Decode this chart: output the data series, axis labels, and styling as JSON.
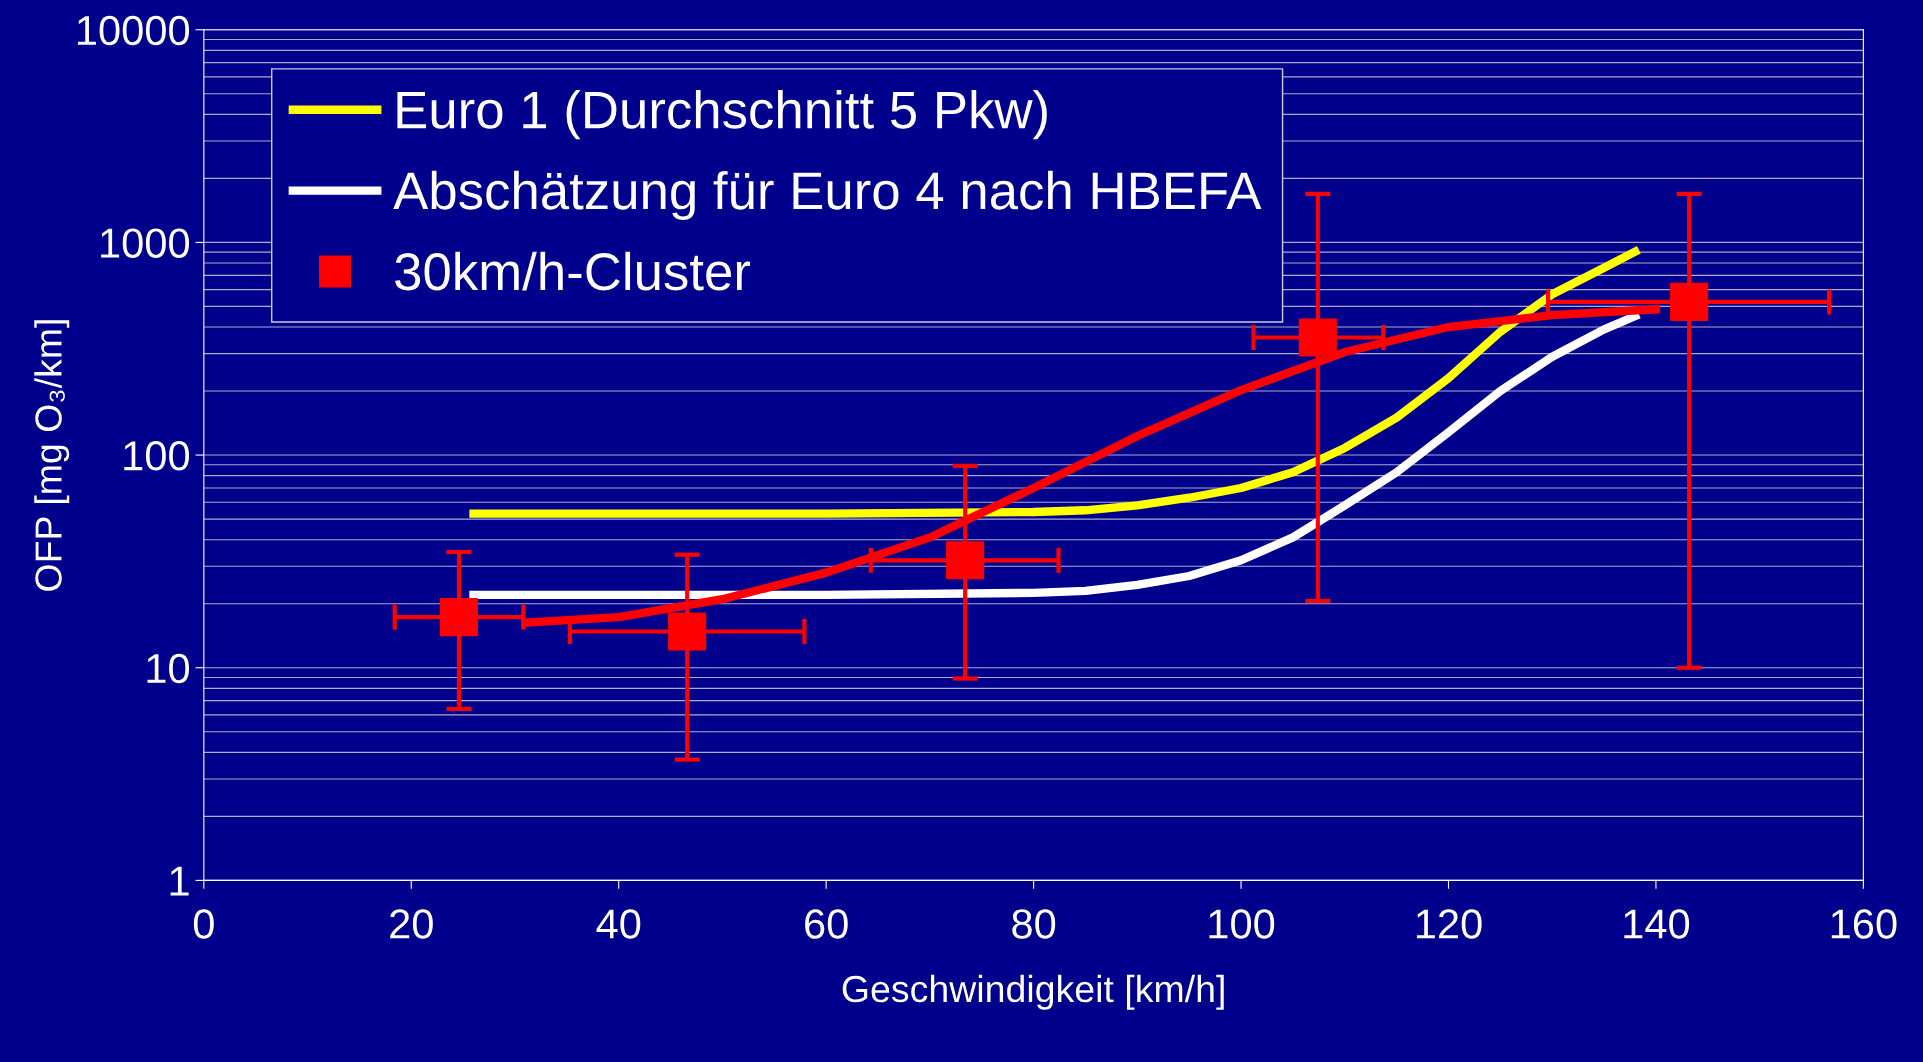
{
  "chart_data": {
    "type": "line",
    "xlabel": "Geschwindigkeit [km/h]",
    "ylabel": "OFP [mg O₃/km]",
    "log": "y",
    "xlim": [
      0,
      160
    ],
    "xticks": [
      0,
      20,
      40,
      60,
      80,
      100,
      120,
      140,
      160
    ],
    "ylim": [
      1,
      10000
    ],
    "yticks": [
      1,
      10,
      100,
      1000,
      10000
    ],
    "grid": "y",
    "legend": "top left",
    "series": [
      {
        "name": "Euro 1 (Durchschnitt 5 Pkw)",
        "color": "#ffff00",
        "x": [
          26,
          40,
          60,
          80,
          85,
          90,
          95,
          100,
          105,
          110,
          115,
          120,
          125,
          130,
          135,
          138
        ],
        "values": [
          53,
          53,
          53,
          54,
          55,
          58,
          63,
          70,
          83,
          108,
          150,
          230,
          380,
          570,
          760,
          905
        ]
      },
      {
        "name": "Abschätzung für Euro 4 nach HBEFA",
        "color": "#ffffff",
        "x": [
          26,
          40,
          60,
          80,
          85,
          90,
          95,
          100,
          105,
          110,
          115,
          120,
          125,
          130,
          135,
          138
        ],
        "values": [
          22,
          22,
          22,
          22.5,
          23,
          24.5,
          27,
          32,
          41,
          58,
          83,
          128,
          200,
          290,
          390,
          450
        ]
      },
      {
        "name": "30km/h-Cluster",
        "type": "scatter",
        "marker": "square",
        "color": "#ff0000",
        "x": [
          24.6,
          46.6,
          73.4,
          107.4,
          143.2
        ],
        "values": [
          17.3,
          14.8,
          32,
          357,
          525
        ],
        "errors": [
          [
            6.4,
            35
          ],
          [
            3.7,
            34
          ],
          [
            8.9,
            89
          ],
          [
            20.6,
            1690
          ],
          [
            10,
            1690
          ]
        ],
        "xerrors": [
          [
            18.4,
            30.8
          ],
          [
            35.3,
            57.9
          ],
          [
            64.3,
            82.4
          ],
          [
            101.2,
            113.7
          ],
          [
            129.6,
            156.7
          ]
        ]
      },
      {
        "color": "#ff0000",
        "x": [
          31,
          40,
          50,
          60,
          70,
          80,
          90,
          100,
          110,
          120,
          130,
          140
        ],
        "values": [
          16.3,
          17.3,
          21,
          28,
          41,
          70,
          123,
          202,
          305,
          400,
          455,
          485
        ]
      }
    ]
  }
}
